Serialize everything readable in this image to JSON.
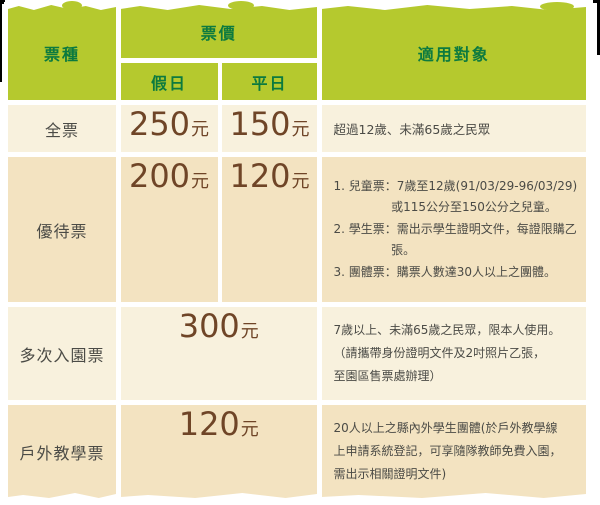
{
  "table": {
    "unit": "元",
    "header": {
      "type": "票種",
      "price": "票價",
      "holiday": "假日",
      "weekday": "平日",
      "audience": "適用對象"
    },
    "rows": [
      {
        "type": "全票",
        "holiday_price": "250",
        "weekday_price": "150",
        "audience": "超過12歲、未滿65歲之民眾"
      },
      {
        "type": "優待票",
        "holiday_price": "200",
        "weekday_price": "120",
        "audience_items": [
          "1. 兒童票：7歲至12歲(91/03/29-96/03/29)或115公分至150公分之兒童。",
          "2. 學生票：需出示學生證明文件，每證限購乙張。",
          "3. 團體票：購票人數達30人以上之團體。"
        ]
      },
      {
        "type": "多次入園票",
        "price": "300",
        "audience": "7歲以上、未滿65歲之民眾，限本人使用。\n（請攜帶身份證明文件及2吋照片乙張，\n至園區售票處辦理）"
      },
      {
        "type": "戶外教學票",
        "price": "120",
        "audience": "20人以上之縣內外學生團體(於戶外教學線\n上申請系統登記，可享隨隊教師免費入園，\n需出示相關證明文件)"
      }
    ],
    "colors": {
      "header_bg": "#b5c92e",
      "header_text": "#0c7a3f",
      "row_cream": "#f8f1dd",
      "row_tan": "#f3e3c1",
      "price_text": "#6f4527",
      "body_text": "#4b4b46"
    }
  }
}
